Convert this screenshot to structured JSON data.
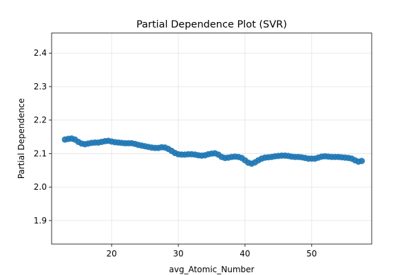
{
  "chart_data": {
    "type": "scatter",
    "title": "Partial Dependence Plot (SVR)",
    "xlabel": "avg_Atomic_Number",
    "ylabel": "Partial Dependence",
    "xlim": [
      11,
      59
    ],
    "ylim": [
      1.83,
      2.46
    ],
    "xticks": [
      20,
      30,
      40,
      50
    ],
    "yticks": [
      1.9,
      2.0,
      2.1,
      2.2,
      2.3,
      2.4
    ],
    "xtick_labels": [
      "20",
      "30",
      "40",
      "50"
    ],
    "ytick_labels": [
      "1.9",
      "2.0",
      "2.1",
      "2.2",
      "2.3",
      "2.4"
    ],
    "grid": true,
    "marker_color": "#1f77b4",
    "series": [
      {
        "x": [
          13.0,
          13.5,
          14.0,
          14.5,
          15.0,
          15.5,
          16.0,
          16.5,
          17.0,
          17.5,
          18.0,
          18.5,
          19.0,
          19.5,
          20.0,
          20.5,
          21.0,
          21.5,
          22.0,
          22.5,
          23.0,
          23.5,
          24.0,
          24.5,
          25.0,
          25.5,
          26.0,
          26.5,
          27.0,
          27.5,
          28.0,
          28.5,
          29.0,
          29.5,
          30.0,
          30.5,
          31.0,
          31.5,
          32.0,
          32.5,
          33.0,
          33.5,
          34.0,
          34.5,
          35.0,
          35.5,
          36.0,
          36.5,
          37.0,
          37.5,
          38.0,
          38.5,
          39.0,
          39.5,
          40.0,
          40.5,
          41.0,
          41.5,
          42.0,
          42.5,
          43.0,
          43.5,
          44.0,
          44.5,
          45.0,
          45.5,
          46.0,
          46.5,
          47.0,
          47.5,
          48.0,
          48.5,
          49.0,
          49.5,
          50.0,
          50.5,
          51.0,
          51.5,
          52.0,
          52.5,
          53.0,
          53.5,
          54.0,
          54.5,
          55.0,
          55.5,
          56.0,
          56.5,
          57.0,
          57.5
        ],
        "y": [
          2.142,
          2.144,
          2.145,
          2.142,
          2.135,
          2.13,
          2.128,
          2.13,
          2.132,
          2.133,
          2.133,
          2.135,
          2.137,
          2.138,
          2.136,
          2.134,
          2.133,
          2.132,
          2.131,
          2.131,
          2.131,
          2.129,
          2.126,
          2.124,
          2.122,
          2.12,
          2.118,
          2.117,
          2.117,
          2.119,
          2.118,
          2.114,
          2.108,
          2.102,
          2.098,
          2.097,
          2.097,
          2.098,
          2.098,
          2.097,
          2.095,
          2.094,
          2.095,
          2.098,
          2.1,
          2.101,
          2.097,
          2.09,
          2.087,
          2.088,
          2.09,
          2.091,
          2.09,
          2.087,
          2.08,
          2.073,
          2.07,
          2.074,
          2.08,
          2.085,
          2.088,
          2.089,
          2.09,
          2.092,
          2.093,
          2.094,
          2.094,
          2.093,
          2.091,
          2.09,
          2.09,
          2.089,
          2.087,
          2.085,
          2.085,
          2.085,
          2.088,
          2.091,
          2.092,
          2.091,
          2.09,
          2.09,
          2.09,
          2.089,
          2.088,
          2.087,
          2.085,
          2.08,
          2.076,
          2.078
        ]
      }
    ]
  }
}
